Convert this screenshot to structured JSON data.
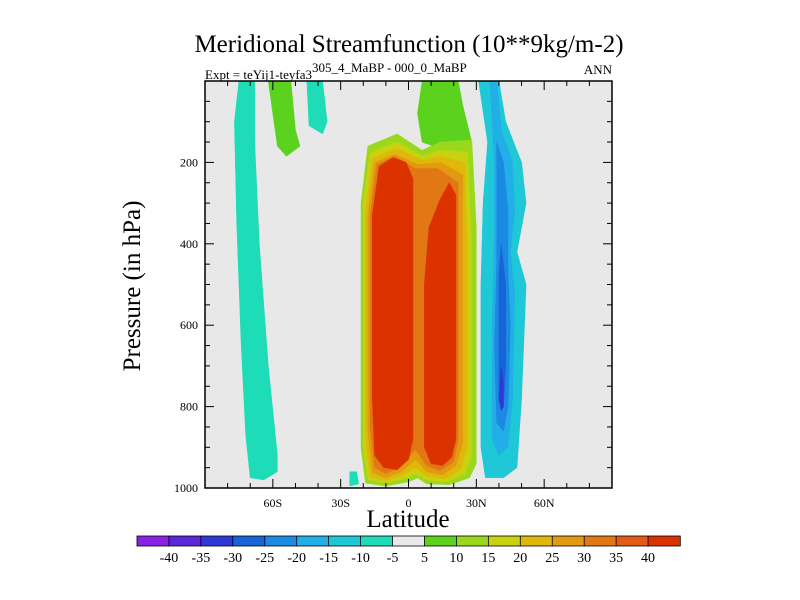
{
  "chart_data": {
    "type": "heatmap",
    "title": "Meridional Streamfunction (10**9kg/m-2)",
    "subtitle_left_main": "Expt = teYij1-teyfa3",
    "subtitle_left_super": "305_4_MaBP - 000_0_MaBP",
    "subtitle_right": "ANN",
    "xlabel": "Latitude",
    "ylabel": "Pressure (in hPa)",
    "xlim": [
      -90,
      90
    ],
    "ylim": [
      1000,
      0
    ],
    "x_ticks": [
      {
        "value": -60,
        "label": "60S"
      },
      {
        "value": -30,
        "label": "30S"
      },
      {
        "value": 0,
        "label": "0"
      },
      {
        "value": 30,
        "label": "30N"
      },
      {
        "value": 60,
        "label": "60N"
      }
    ],
    "y_ticks": [
      {
        "value": 200,
        "label": "200"
      },
      {
        "value": 400,
        "label": "400"
      },
      {
        "value": 600,
        "label": "600"
      },
      {
        "value": 800,
        "label": "800"
      },
      {
        "value": 1000,
        "label": "1000"
      }
    ],
    "colorbar": {
      "labels": [
        "-40",
        "-35",
        "-30",
        "-25",
        "-20",
        "-15",
        "-10",
        "-5",
        "5",
        "10",
        "15",
        "20",
        "25",
        "30",
        "35",
        "40"
      ],
      "colors": [
        "#8a22e6",
        "#5b2ad8",
        "#2f3ad6",
        "#1864d6",
        "#1b8ae2",
        "#22aee6",
        "#1ec8d6",
        "#1edcb8",
        "#e8e8e8",
        "#5ad21e",
        "#9ad81e",
        "#c8d20e",
        "#e0b80c",
        "#e29a10",
        "#e27814",
        "#e25a16",
        "#dc3200"
      ]
    },
    "regions": [
      {
        "name": "sh-weak-negative-cell",
        "value": -7,
        "poly": [
          [
            -75,
            0
          ],
          [
            -68,
            0
          ],
          [
            -68,
            150
          ],
          [
            -66,
            400
          ],
          [
            -62,
            700
          ],
          [
            -58,
            920
          ],
          [
            -58,
            960
          ],
          [
            -64,
            980
          ],
          [
            -70,
            975
          ],
          [
            -72,
            870
          ],
          [
            -74,
            650
          ],
          [
            -76,
            350
          ],
          [
            -77,
            100
          ]
        ]
      },
      {
        "name": "sh-upper-positive-tongue",
        "value": 7,
        "poly": [
          [
            -62,
            0
          ],
          [
            -52,
            0
          ],
          [
            -50,
            120
          ],
          [
            -48,
            160
          ],
          [
            -54,
            185
          ],
          [
            -58,
            160
          ],
          [
            -60,
            80
          ]
        ]
      },
      {
        "name": "sh-upper-negative-blob",
        "value": -7,
        "poly": [
          [
            -45,
            0
          ],
          [
            -38,
            0
          ],
          [
            -36,
            100
          ],
          [
            -38,
            130
          ],
          [
            -44,
            110
          ]
        ]
      },
      {
        "name": "sh-lower-negative-strip",
        "value": -7,
        "poly": [
          [
            -26,
            960
          ],
          [
            -23,
            960
          ],
          [
            -22,
            990
          ],
          [
            -26,
            995
          ]
        ]
      },
      {
        "name": "tropical-upper-green",
        "value": 7,
        "poly": [
          [
            6,
            0
          ],
          [
            22,
            0
          ],
          [
            24,
            60
          ],
          [
            28,
            150
          ],
          [
            16,
            170
          ],
          [
            6,
            150
          ],
          [
            4,
            80
          ]
        ]
      },
      {
        "name": "hadley-level-10",
        "value": 10,
        "poly": [
          [
            -18,
            160
          ],
          [
            -5,
            130
          ],
          [
            6,
            170
          ],
          [
            14,
            150
          ],
          [
            28,
            145
          ],
          [
            30,
            360
          ],
          [
            30,
            940
          ],
          [
            27,
            975
          ],
          [
            18,
            992
          ],
          [
            8,
            990
          ],
          [
            4,
            975
          ],
          [
            0,
            985
          ],
          [
            -10,
            995
          ],
          [
            -19,
            988
          ],
          [
            -21,
            900
          ],
          [
            -21,
            300
          ]
        ]
      },
      {
        "name": "hadley-level-15",
        "value": 15,
        "poly": [
          [
            -17,
            175
          ],
          [
            -5,
            150
          ],
          [
            6,
            185
          ],
          [
            14,
            170
          ],
          [
            26,
            175
          ],
          [
            28,
            400
          ],
          [
            28,
            920
          ],
          [
            25,
            965
          ],
          [
            17,
            985
          ],
          [
            8,
            980
          ],
          [
            3,
            965
          ],
          [
            -2,
            978
          ],
          [
            -10,
            988
          ],
          [
            -18,
            980
          ],
          [
            -20,
            900
          ],
          [
            -20,
            300
          ]
        ]
      },
      {
        "name": "hadley-level-20",
        "value": 20,
        "poly": [
          [
            -16,
            190
          ],
          [
            -5,
            165
          ],
          [
            6,
            195
          ],
          [
            14,
            185
          ],
          [
            25,
            200
          ],
          [
            26,
            420
          ],
          [
            26,
            900
          ],
          [
            23,
            955
          ],
          [
            16,
            978
          ],
          [
            8,
            970
          ],
          [
            3,
            950
          ],
          [
            -3,
            970
          ],
          [
            -10,
            982
          ],
          [
            -17,
            972
          ],
          [
            -19,
            880
          ],
          [
            -19,
            320
          ]
        ]
      },
      {
        "name": "hadley-level-25",
        "value": 25,
        "poly": [
          [
            -15,
            200
          ],
          [
            -6,
            180
          ],
          [
            4,
            205
          ],
          [
            14,
            200
          ],
          [
            24,
            230
          ],
          [
            24,
            420
          ],
          [
            24,
            890
          ],
          [
            21,
            945
          ],
          [
            15,
            968
          ],
          [
            8,
            960
          ],
          [
            3,
            930
          ],
          [
            -3,
            960
          ],
          [
            -10,
            975
          ],
          [
            -16,
            962
          ],
          [
            -18,
            860
          ],
          [
            -18,
            330
          ]
        ]
      },
      {
        "name": "hadley-level-30",
        "value": 30,
        "poly": [
          [
            -14,
            205
          ],
          [
            -6,
            185
          ],
          [
            3,
            215
          ],
          [
            13,
            215
          ],
          [
            22,
            250
          ],
          [
            22,
            420
          ],
          [
            22,
            880
          ],
          [
            20,
            935
          ],
          [
            14,
            958
          ],
          [
            8,
            945
          ],
          [
            3,
            905
          ],
          [
            -3,
            945
          ],
          [
            -10,
            965
          ],
          [
            -15,
            950
          ],
          [
            -17,
            850
          ],
          [
            -17,
            330
          ]
        ]
      },
      {
        "name": "hadley-core-40",
        "value": 42,
        "poly": [
          [
            -13,
            210
          ],
          [
            -7,
            188
          ],
          [
            -1,
            200
          ],
          [
            2,
            240
          ],
          [
            2,
            880
          ],
          [
            0,
            930
          ],
          [
            -5,
            955
          ],
          [
            -11,
            950
          ],
          [
            -15,
            920
          ],
          [
            -16,
            780
          ],
          [
            -16,
            330
          ]
        ]
      },
      {
        "name": "nh-hadley-core-40",
        "value": 42,
        "poly": [
          [
            14,
            290
          ],
          [
            18,
            250
          ],
          [
            21,
            280
          ],
          [
            21,
            880
          ],
          [
            19,
            925
          ],
          [
            15,
            945
          ],
          [
            10,
            940
          ],
          [
            7,
            900
          ],
          [
            7,
            500
          ],
          [
            9,
            360
          ]
        ]
      },
      {
        "name": "ferrel-level-neg10",
        "value": -12,
        "poly": [
          [
            31,
            0
          ],
          [
            40,
            0
          ],
          [
            43,
            100
          ],
          [
            50,
            200
          ],
          [
            52,
            300
          ],
          [
            48,
            420
          ],
          [
            52,
            500
          ],
          [
            50,
            780
          ],
          [
            48,
            950
          ],
          [
            42,
            975
          ],
          [
            34,
            975
          ],
          [
            32,
            900
          ],
          [
            32,
            500
          ],
          [
            33,
            300
          ],
          [
            35,
            150
          ]
        ]
      },
      {
        "name": "ferrel-level-neg15",
        "value": -17,
        "poly": [
          [
            36,
            0
          ],
          [
            39,
            0
          ],
          [
            41,
            120
          ],
          [
            46,
            200
          ],
          [
            47,
            320
          ],
          [
            45,
            420
          ],
          [
            47,
            520
          ],
          [
            46,
            780
          ],
          [
            44,
            900
          ],
          [
            40,
            920
          ],
          [
            37,
            880
          ],
          [
            37,
            600
          ],
          [
            38,
            380
          ],
          [
            38,
            200
          ]
        ]
      },
      {
        "name": "ferrel-level-neg20",
        "value": -22,
        "poly": [
          [
            39,
            150
          ],
          [
            42,
            200
          ],
          [
            44,
            320
          ],
          [
            44,
            460
          ],
          [
            45,
            600
          ],
          [
            44,
            800
          ],
          [
            42,
            860
          ],
          [
            39,
            840
          ],
          [
            38,
            650
          ],
          [
            39,
            450
          ],
          [
            39,
            320
          ]
        ]
      },
      {
        "name": "ferrel-level-neg25",
        "value": -28,
        "poly": [
          [
            41,
            400
          ],
          [
            43,
            500
          ],
          [
            43,
            700
          ],
          [
            42,
            800
          ],
          [
            40,
            790
          ],
          [
            40,
            600
          ],
          [
            40,
            480
          ]
        ]
      },
      {
        "name": "ferrel-level-neg30",
        "value": -32,
        "poly": [
          [
            41,
            700
          ],
          [
            42,
            740
          ],
          [
            42,
            800
          ],
          [
            41,
            810
          ],
          [
            40,
            780
          ]
        ]
      }
    ]
  }
}
